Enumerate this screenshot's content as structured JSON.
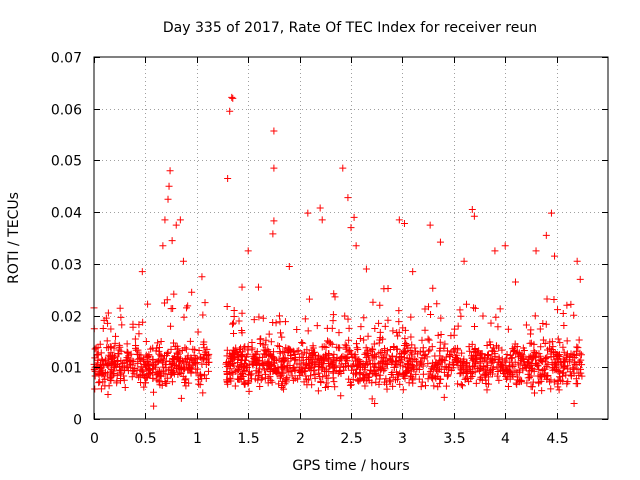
{
  "chart_data": {
    "type": "scatter",
    "title": "Day 335 of 2017, Rate Of TEC Index for receiver reun",
    "xlabel": "GPS time / hours",
    "ylabel": "ROTI / TECUs",
    "xlim": [
      0,
      5
    ],
    "ylim": [
      0,
      0.07
    ],
    "x_ticks": [
      0,
      0.5,
      1,
      1.5,
      2,
      2.5,
      3,
      3.5,
      4,
      4.5
    ],
    "x_tick_labels": [
      "0",
      "0.5",
      "1",
      "1.5",
      "2",
      "2.5",
      "3",
      "3.5",
      "4",
      "4.5"
    ],
    "y_ticks": [
      0,
      0.01,
      0.02,
      0.03,
      0.04,
      0.05,
      0.06,
      0.07
    ],
    "y_tick_labels": [
      "0",
      "0.01",
      "0.02",
      "0.03",
      "0.04",
      "0.05",
      "0.06",
      "0.07"
    ],
    "grid": true,
    "marker": "+",
    "color": "#ff0000",
    "series": [
      {
        "name": "ROTI",
        "segments": [
          {
            "x_start": 0.0,
            "x_end": 1.12,
            "y_base": 0.0105,
            "y_spread": 0.0045,
            "n": 420
          },
          {
            "x_start": 1.28,
            "x_end": 4.75,
            "y_base": 0.0105,
            "y_spread": 0.0045,
            "n": 1300
          }
        ],
        "notable_points": [
          {
            "x": 0.0,
            "y": 0.0215
          },
          {
            "x": 0.09,
            "y": 0.0175
          },
          {
            "x": 0.12,
            "y": 0.0195
          },
          {
            "x": 0.14,
            "y": 0.0205
          },
          {
            "x": 0.27,
            "y": 0.0182
          },
          {
            "x": 0.47,
            "y": 0.0285
          },
          {
            "x": 0.67,
            "y": 0.0335
          },
          {
            "x": 0.69,
            "y": 0.0385
          },
          {
            "x": 0.72,
            "y": 0.0425
          },
          {
            "x": 0.73,
            "y": 0.045
          },
          {
            "x": 0.74,
            "y": 0.048
          },
          {
            "x": 0.76,
            "y": 0.0345
          },
          {
            "x": 0.8,
            "y": 0.0375
          },
          {
            "x": 0.84,
            "y": 0.0385
          },
          {
            "x": 0.87,
            "y": 0.0305
          },
          {
            "x": 0.9,
            "y": 0.0215
          },
          {
            "x": 0.95,
            "y": 0.0245
          },
          {
            "x": 1.05,
            "y": 0.0275
          },
          {
            "x": 1.08,
            "y": 0.0225
          },
          {
            "x": 1.3,
            "y": 0.0465
          },
          {
            "x": 1.32,
            "y": 0.0595
          },
          {
            "x": 1.34,
            "y": 0.0622
          },
          {
            "x": 1.35,
            "y": 0.062
          },
          {
            "x": 1.44,
            "y": 0.0255
          },
          {
            "x": 1.5,
            "y": 0.0325
          },
          {
            "x": 1.6,
            "y": 0.0255
          },
          {
            "x": 1.74,
            "y": 0.0358
          },
          {
            "x": 1.75,
            "y": 0.0383
          },
          {
            "x": 1.75,
            "y": 0.0485
          },
          {
            "x": 1.75,
            "y": 0.0557
          },
          {
            "x": 1.9,
            "y": 0.0295
          },
          {
            "x": 2.08,
            "y": 0.0398
          },
          {
            "x": 2.2,
            "y": 0.0408
          },
          {
            "x": 2.22,
            "y": 0.0385
          },
          {
            "x": 2.42,
            "y": 0.0485
          },
          {
            "x": 2.47,
            "y": 0.0428
          },
          {
            "x": 2.5,
            "y": 0.037
          },
          {
            "x": 2.53,
            "y": 0.039
          },
          {
            "x": 2.55,
            "y": 0.0335
          },
          {
            "x": 2.65,
            "y": 0.029
          },
          {
            "x": 2.78,
            "y": 0.022
          },
          {
            "x": 2.97,
            "y": 0.0385
          },
          {
            "x": 3.02,
            "y": 0.0378
          },
          {
            "x": 3.1,
            "y": 0.0285
          },
          {
            "x": 3.27,
            "y": 0.0375
          },
          {
            "x": 3.37,
            "y": 0.0342
          },
          {
            "x": 3.6,
            "y": 0.0305
          },
          {
            "x": 3.68,
            "y": 0.0405
          },
          {
            "x": 3.7,
            "y": 0.0392
          },
          {
            "x": 3.9,
            "y": 0.0325
          },
          {
            "x": 4.0,
            "y": 0.0335
          },
          {
            "x": 4.1,
            "y": 0.0265
          },
          {
            "x": 4.3,
            "y": 0.0325
          },
          {
            "x": 4.4,
            "y": 0.0355
          },
          {
            "x": 4.45,
            "y": 0.0398
          },
          {
            "x": 4.48,
            "y": 0.0315
          },
          {
            "x": 4.6,
            "y": 0.022
          },
          {
            "x": 4.7,
            "y": 0.0305
          },
          {
            "x": 4.73,
            "y": 0.027
          },
          {
            "x": 0.58,
            "y": 0.0025
          },
          {
            "x": 2.73,
            "y": 0.003
          },
          {
            "x": 4.67,
            "y": 0.003
          },
          {
            "x": 0.85,
            "y": 0.004
          },
          {
            "x": 2.4,
            "y": 0.0045
          }
        ]
      }
    ]
  }
}
